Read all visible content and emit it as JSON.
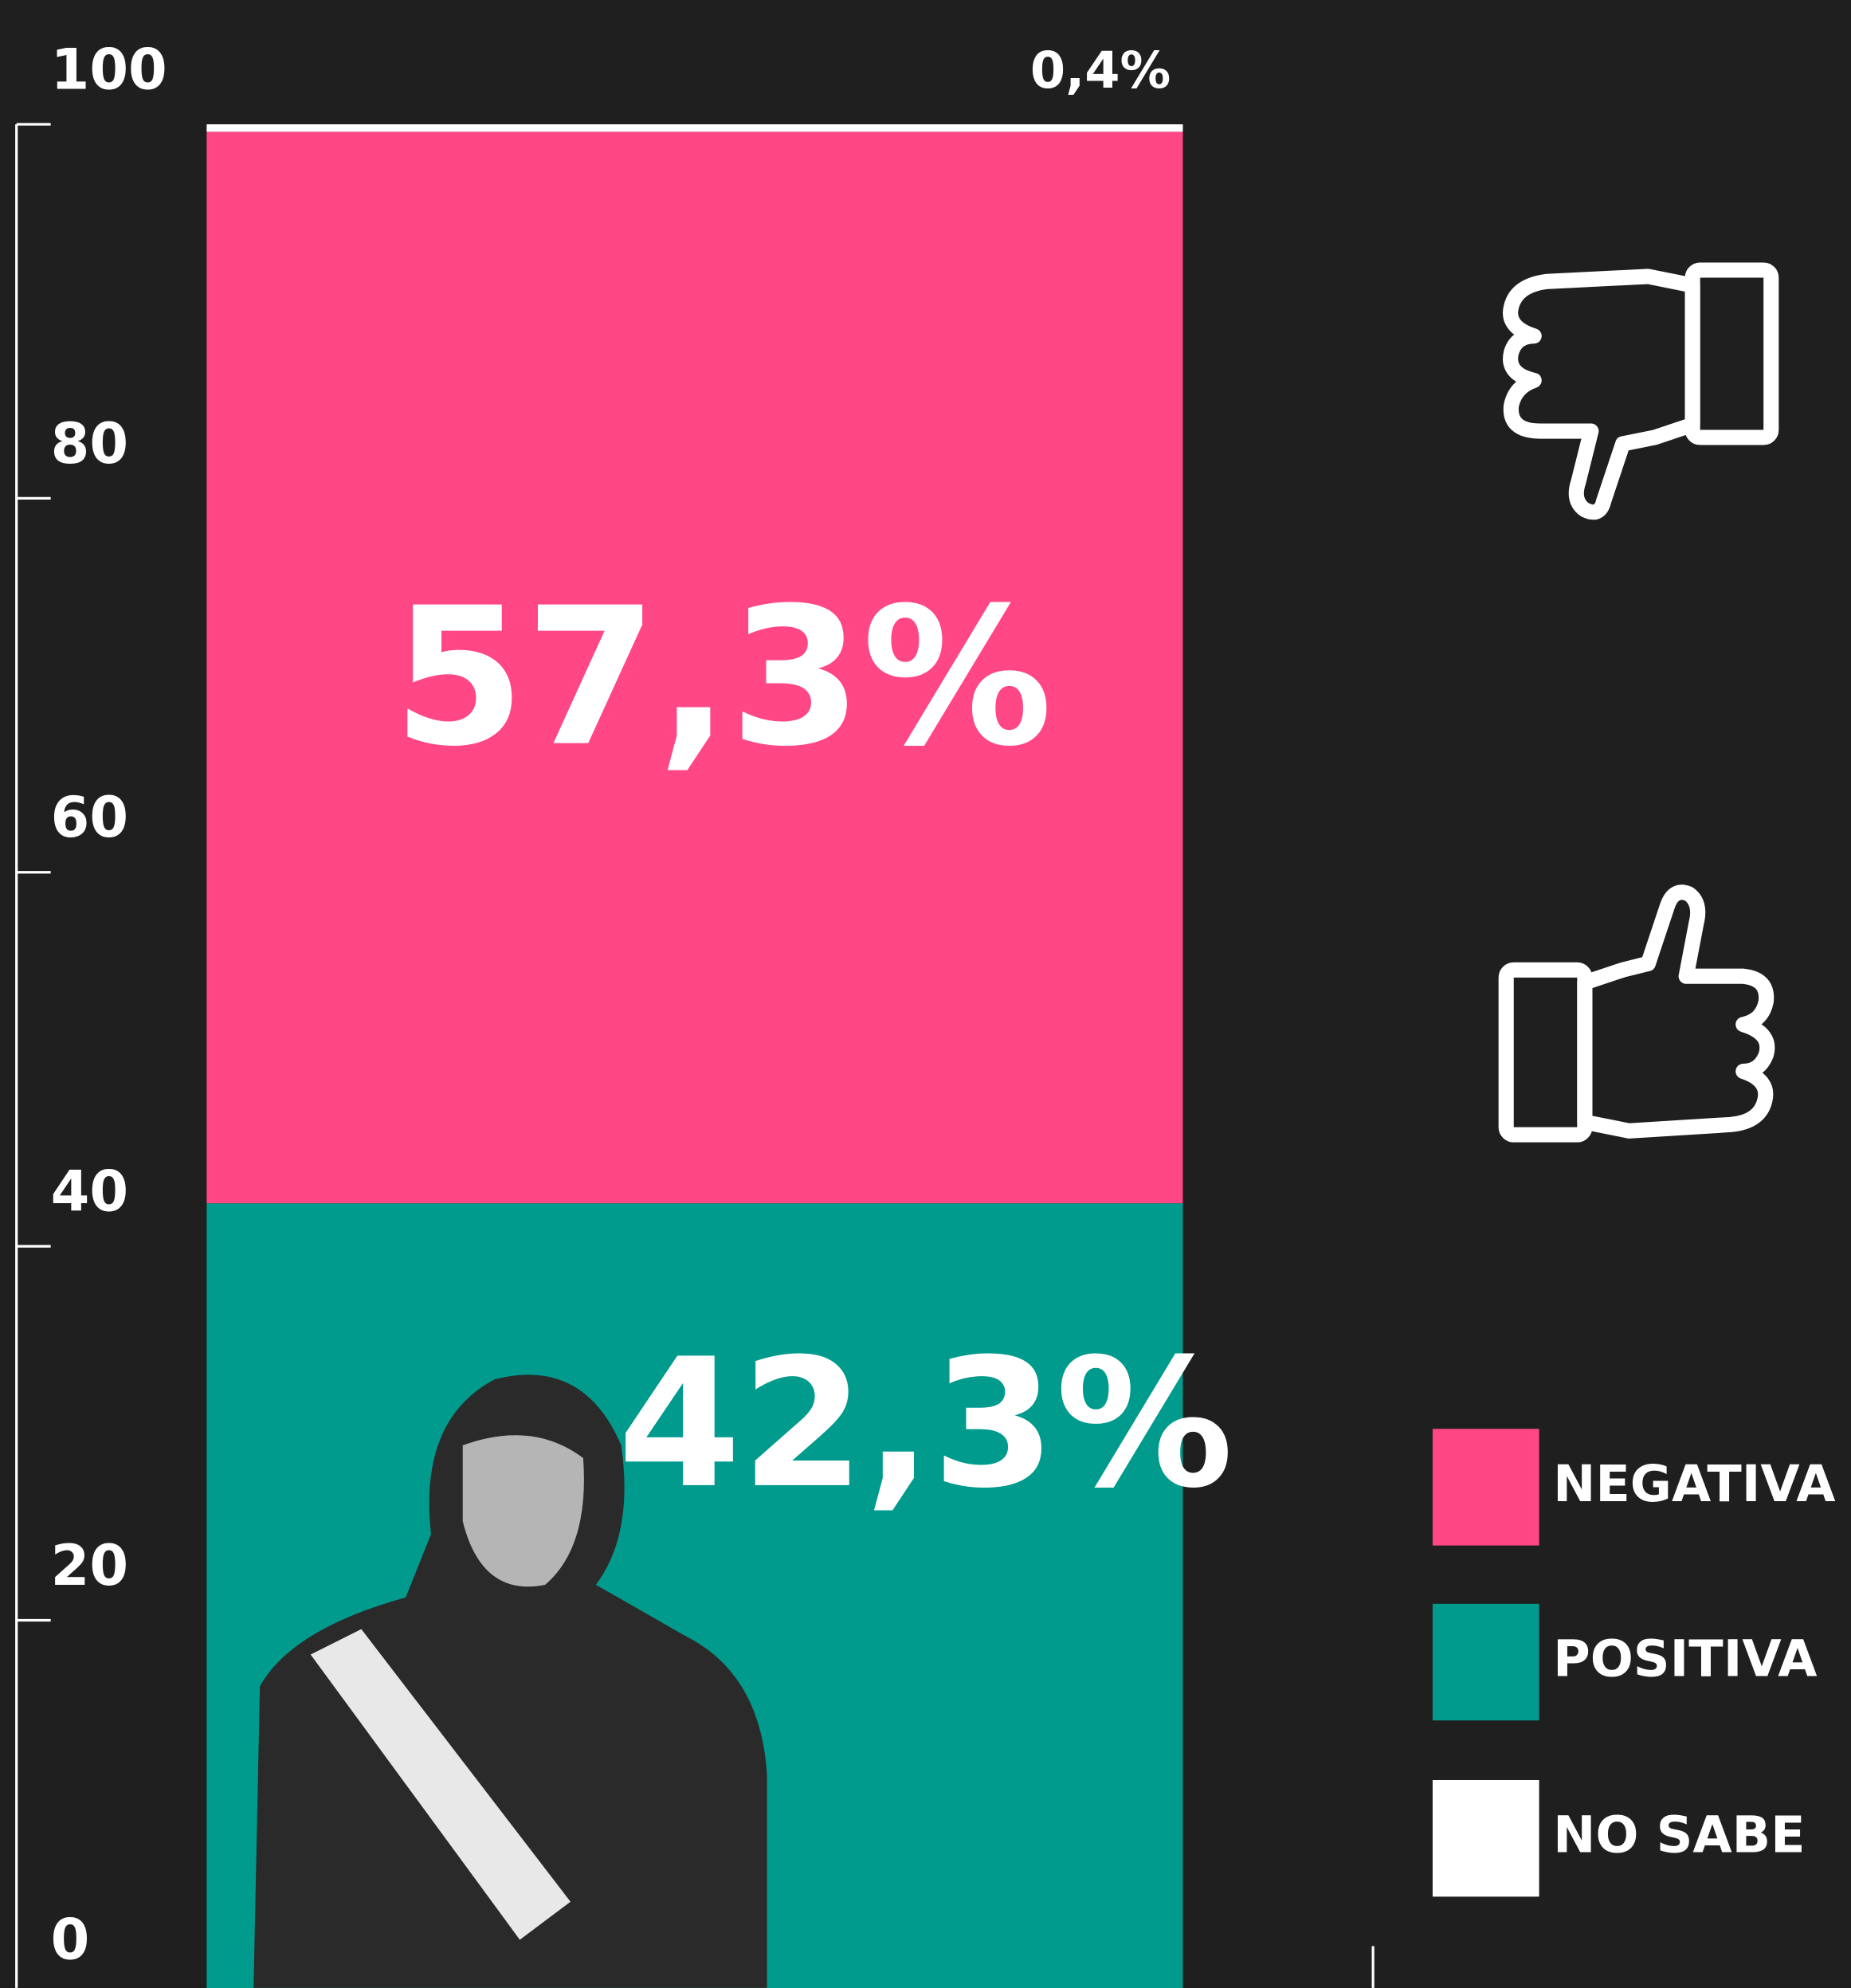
{
  "chart_data": {
    "type": "stacked_bar",
    "categories": [
      null
    ],
    "series": [
      {
        "name": "NEGATIVA",
        "color": "#ff4785",
        "values": [
          57.3
        ],
        "value_labels": [
          "57,3%"
        ]
      },
      {
        "name": "POSITIVA",
        "color": "#009b8d",
        "values": [
          42.3
        ],
        "value_labels": [
          "42,3%"
        ]
      },
      {
        "name": "NO SABE",
        "color": "#ffffff",
        "values": [
          0.4
        ],
        "value_labels": [
          "0,4%"
        ]
      }
    ],
    "ylim": [
      0,
      100
    ],
    "yticks": [
      0,
      20,
      40,
      60,
      80,
      100
    ]
  }
}
